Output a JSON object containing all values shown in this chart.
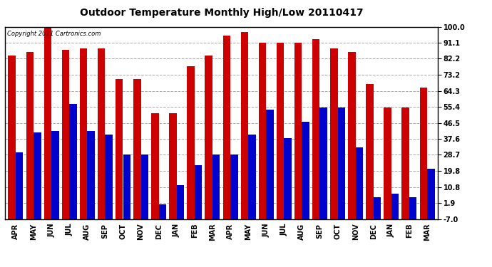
{
  "title": "Outdoor Temperature Monthly High/Low 20110417",
  "copyright": "Copyright 2011 Cartronics.com",
  "months": [
    "APR",
    "MAY",
    "JUN",
    "JUL",
    "AUG",
    "SEP",
    "OCT",
    "NOV",
    "DEC",
    "JAN",
    "FEB",
    "MAR",
    "APR",
    "MAY",
    "JUN",
    "JUL",
    "AUG",
    "SEP",
    "OCT",
    "NOV",
    "DEC",
    "JAN",
    "FEB",
    "MAR"
  ],
  "highs": [
    84,
    86,
    100,
    87,
    88,
    88,
    71,
    71,
    52,
    52,
    78,
    84,
    95,
    97,
    91,
    91,
    91,
    93,
    88,
    86,
    68,
    55,
    55,
    66
  ],
  "lows": [
    30,
    41,
    42,
    57,
    42,
    40,
    29,
    29,
    1,
    12,
    23,
    29,
    29,
    40,
    54,
    38,
    47,
    55,
    55,
    33,
    5,
    7,
    5,
    21
  ],
  "ymin": -7.0,
  "ymax": 100.0,
  "yticks": [
    100.0,
    91.1,
    82.2,
    73.2,
    64.3,
    55.4,
    46.5,
    37.6,
    28.7,
    19.8,
    10.8,
    1.9,
    -7.0
  ],
  "bar_width": 0.42,
  "high_color": "#cc0000",
  "low_color": "#0000cc",
  "bg_color": "#ffffff",
  "grid_color": "#aaaaaa",
  "title_fontsize": 10,
  "tick_fontsize": 7,
  "copyright_fontsize": 6
}
